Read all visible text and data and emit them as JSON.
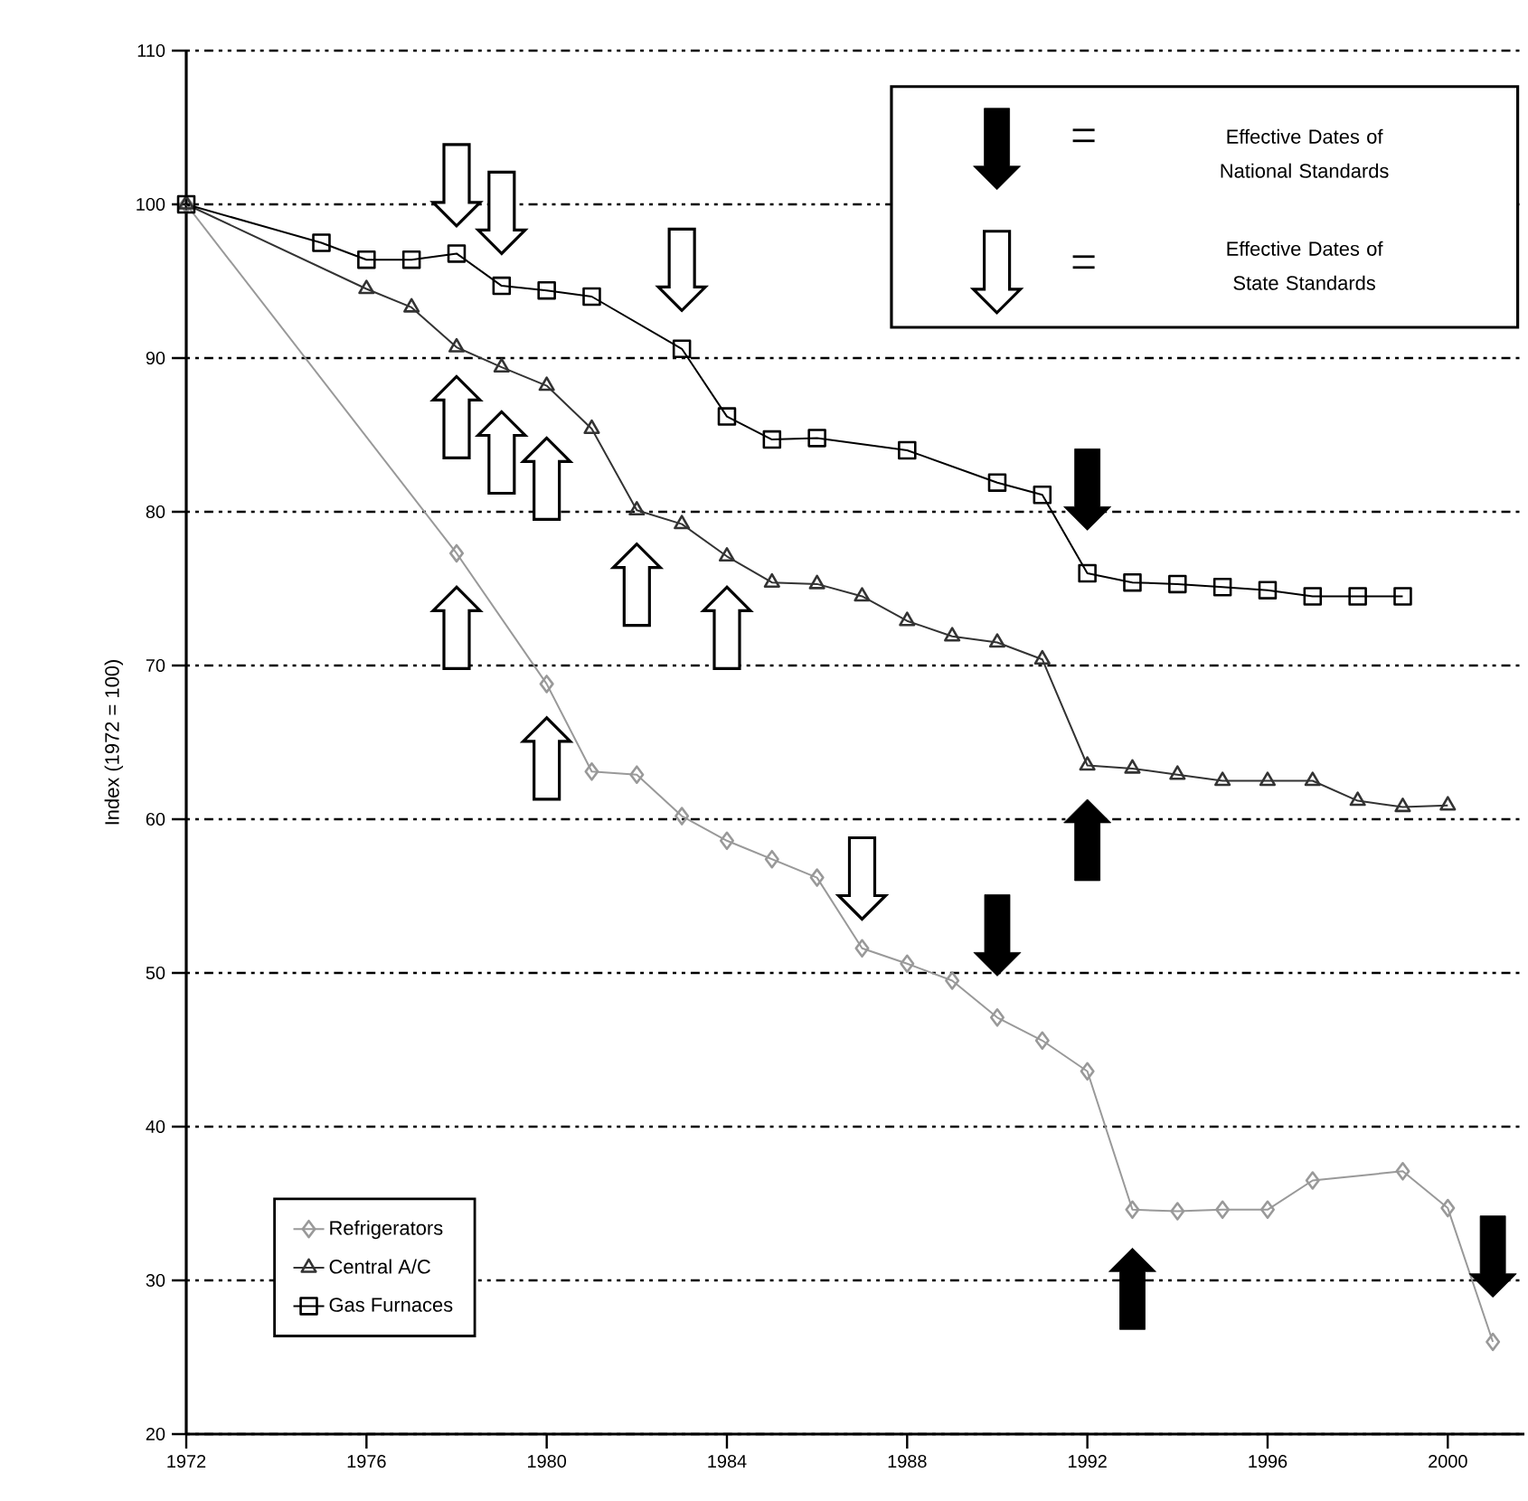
{
  "chart_data": {
    "type": "line",
    "ylabel": "Index (1972 = 100)",
    "xlim": [
      1972,
      2001.7
    ],
    "xticks": [
      1972,
      1976,
      1980,
      1984,
      1988,
      1992,
      1996,
      2000
    ],
    "ylim": [
      20,
      110
    ],
    "yticks": [
      20,
      30,
      40,
      50,
      60,
      70,
      80,
      90,
      100,
      110
    ],
    "grid": "y",
    "legend": "bottom left",
    "line_style": "solid",
    "annotations": [
      "Effective Dates of National Standards",
      "Effective Dates of State Standards"
    ],
    "series": [
      {
        "name": "Refrigerators",
        "color": "#999999",
        "marker": "diamond",
        "x": [
          1972,
          1978,
          1980,
          1981,
          1982,
          1983,
          1984,
          1985,
          1986,
          1987,
          1988,
          1989,
          1990,
          1991,
          1992,
          1993,
          1994,
          1995,
          1996,
          1997,
          1999,
          2000,
          2001
        ],
        "values": [
          100,
          77.3,
          68.8,
          63.1,
          62.9,
          60.2,
          58.6,
          57.4,
          56.2,
          51.6,
          50.6,
          49.5,
          47.1,
          45.6,
          43.6,
          34.6,
          34.5,
          34.6,
          34.6,
          36.5,
          37.1,
          34.7,
          26.0
        ]
      },
      {
        "name": "Central A/C",
        "color": "#333333",
        "marker": "triangle",
        "x": [
          1972,
          1976,
          1977,
          1978,
          1979,
          1980,
          1981,
          1982,
          1983,
          1984,
          1985,
          1986,
          1987,
          1988,
          1989,
          1990,
          1991,
          1992,
          1993,
          1994,
          1995,
          1996,
          1997,
          1998,
          1999,
          2000
        ],
        "values": [
          100,
          94.5,
          93.3,
          90.7,
          89.4,
          88.2,
          85.4,
          80.1,
          79.2,
          77.1,
          75.4,
          75.3,
          74.5,
          72.9,
          71.9,
          71.5,
          70.4,
          63.5,
          63.3,
          62.9,
          62.5,
          62.5,
          62.5,
          61.2,
          60.8,
          60.9
        ]
      },
      {
        "name": "Gas Furnaces",
        "color": "#000000",
        "marker": "square",
        "x": [
          1972,
          1975,
          1976,
          1977,
          1978,
          1979,
          1980,
          1981,
          1983,
          1984,
          1985,
          1986,
          1988,
          1990,
          1991,
          1992,
          1993,
          1994,
          1995,
          1996,
          1997,
          1998,
          1999
        ],
        "values": [
          100,
          97.5,
          96.4,
          96.4,
          96.8,
          94.7,
          94.4,
          94.0,
          90.6,
          86.2,
          84.7,
          84.8,
          84.0,
          81.9,
          81.1,
          76.0,
          75.4,
          75.3,
          75.1,
          74.9,
          74.5,
          74.5,
          74.5
        ]
      }
    ]
  }
}
